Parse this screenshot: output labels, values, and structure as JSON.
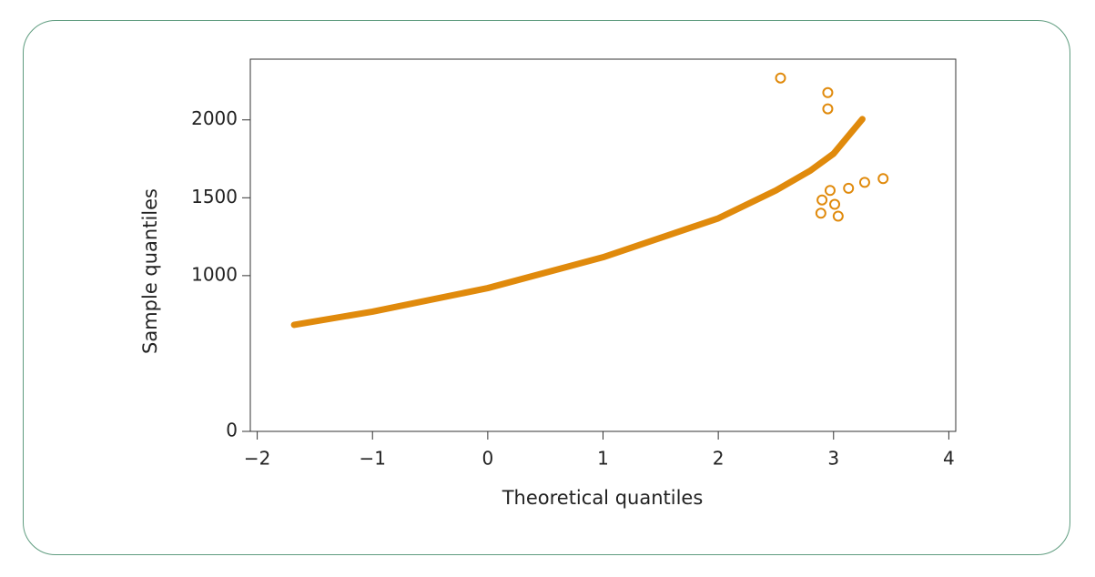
{
  "chart_data": {
    "type": "scatter",
    "x_label": "Theoretical quantiles",
    "y_label": "Sample quantiles",
    "xlim": [
      -2.06,
      4.06
    ],
    "ylim": [
      0,
      2390
    ],
    "xticks": [
      {
        "value": -2,
        "label": "−2"
      },
      {
        "value": -1,
        "label": "−1"
      },
      0,
      1,
      2,
      3,
      4
    ],
    "yticks": [
      0,
      1000,
      1500,
      2000
    ],
    "series": [
      {
        "style": "line",
        "color": "#e08a0c",
        "x": [
          -1.68,
          -1,
          0,
          1,
          2,
          2.5,
          2.8,
          3,
          3.25
        ],
        "values": [
          684,
          769,
          920,
          1118,
          1368,
          1547,
          1675,
          1783,
          2005
        ]
      },
      {
        "style": "markers",
        "color": "#e08a0c",
        "x": [
          2.54,
          2.95,
          2.95,
          2.9,
          2.97,
          3.01,
          2.89,
          3.04,
          3.13,
          3.27,
          3.43
        ],
        "values": [
          2269,
          2175,
          2071,
          1486,
          1547,
          1458,
          1401,
          1382,
          1561,
          1599,
          1623
        ]
      }
    ]
  }
}
